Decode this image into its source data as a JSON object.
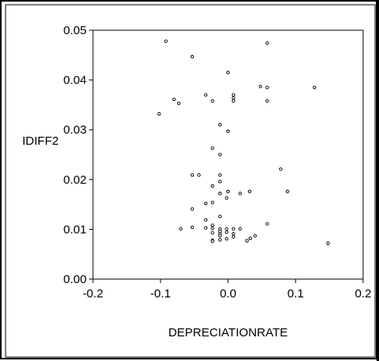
{
  "chart_data": {
    "type": "scatter",
    "xlabel": "DEPRECIATIONRATE",
    "ylabel": "IDIFF2",
    "xlim": [
      -0.2,
      0.2
    ],
    "ylim": [
      0.0,
      0.05
    ],
    "x_ticks": [
      "-0.2",
      "-0.1",
      "0.0",
      "0.1",
      "0.2"
    ],
    "y_ticks": [
      "0.00",
      "0.01",
      "0.02",
      "0.03",
      "0.04",
      "0.05"
    ],
    "grid": false,
    "marker_color": "#000000",
    "points": [
      {
        "x": -0.092,
        "y": 0.0478
      },
      {
        "x": -0.053,
        "y": 0.0447
      },
      {
        "x": 0.058,
        "y": 0.0474
      },
      {
        "x": 0.0,
        "y": 0.0415
      },
      {
        "x": 0.048,
        "y": 0.0387
      },
      {
        "x": 0.058,
        "y": 0.0385
      },
      {
        "x": 0.128,
        "y": 0.0385
      },
      {
        "x": -0.033,
        "y": 0.037
      },
      {
        "x": 0.008,
        "y": 0.037
      },
      {
        "x": 0.008,
        "y": 0.0364
      },
      {
        "x": -0.08,
        "y": 0.0361
      },
      {
        "x": -0.073,
        "y": 0.0353
      },
      {
        "x": -0.023,
        "y": 0.0358
      },
      {
        "x": 0.008,
        "y": 0.0358
      },
      {
        "x": 0.058,
        "y": 0.0358
      },
      {
        "x": -0.102,
        "y": 0.0332
      },
      {
        "x": -0.012,
        "y": 0.031
      },
      {
        "x": 0.0,
        "y": 0.0297
      },
      {
        "x": -0.023,
        "y": 0.0263
      },
      {
        "x": -0.012,
        "y": 0.025
      },
      {
        "x": 0.078,
        "y": 0.0221
      },
      {
        "x": -0.053,
        "y": 0.0209
      },
      {
        "x": -0.043,
        "y": 0.0209
      },
      {
        "x": -0.012,
        "y": 0.0209
      },
      {
        "x": -0.012,
        "y": 0.0196
      },
      {
        "x": -0.023,
        "y": 0.0187
      },
      {
        "x": 0.0,
        "y": 0.0176
      },
      {
        "x": 0.032,
        "y": 0.0176
      },
      {
        "x": 0.088,
        "y": 0.0176
      },
      {
        "x": -0.012,
        "y": 0.0172
      },
      {
        "x": 0.018,
        "y": 0.0172
      },
      {
        "x": -0.002,
        "y": 0.0163
      },
      {
        "x": -0.023,
        "y": 0.0154
      },
      {
        "x": -0.033,
        "y": 0.0152
      },
      {
        "x": -0.053,
        "y": 0.0141
      },
      {
        "x": -0.012,
        "y": 0.0126
      },
      {
        "x": -0.033,
        "y": 0.0119
      },
      {
        "x": 0.058,
        "y": 0.0111
      },
      {
        "x": -0.023,
        "y": 0.0108
      },
      {
        "x": -0.053,
        "y": 0.0104
      },
      {
        "x": -0.033,
        "y": 0.0103
      },
      {
        "x": -0.023,
        "y": 0.0102
      },
      {
        "x": -0.07,
        "y": 0.0101
      },
      {
        "x": -0.012,
        "y": 0.0101
      },
      {
        "x": -0.002,
        "y": 0.0101
      },
      {
        "x": 0.008,
        "y": 0.0101
      },
      {
        "x": 0.018,
        "y": 0.0101
      },
      {
        "x": -0.012,
        "y": 0.0096
      },
      {
        "x": -0.002,
        "y": 0.0094
      },
      {
        "x": -0.023,
        "y": 0.0093
      },
      {
        "x": -0.012,
        "y": 0.0091
      },
      {
        "x": 0.008,
        "y": 0.0091
      },
      {
        "x": -0.012,
        "y": 0.0087
      },
      {
        "x": 0.04,
        "y": 0.0087
      },
      {
        "x": 0.008,
        "y": 0.0085
      },
      {
        "x": 0.033,
        "y": 0.0082
      },
      {
        "x": -0.002,
        "y": 0.0081
      },
      {
        "x": -0.012,
        "y": 0.0079
      },
      {
        "x": -0.023,
        "y": 0.0078
      },
      {
        "x": 0.028,
        "y": 0.0077
      },
      {
        "x": -0.023,
        "y": 0.0076
      },
      {
        "x": 0.148,
        "y": 0.0072
      }
    ]
  }
}
